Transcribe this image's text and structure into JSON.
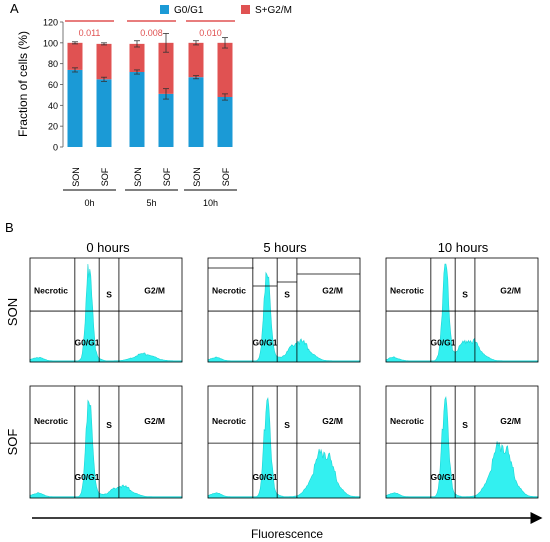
{
  "chart_data": [
    {
      "type": "bar",
      "panel_label": "A",
      "stacked": true,
      "ylabel": "Fraction of cells (%)",
      "ylim": [
        0,
        120
      ],
      "yticks": [
        0,
        20,
        40,
        60,
        80,
        100,
        120
      ],
      "grid": false,
      "legend_position": "top",
      "categories": [
        "SON",
        "SOF",
        "SON",
        "SOF",
        "SON",
        "SOF"
      ],
      "groups": [
        {
          "label": "0h",
          "categories": [
            0,
            1
          ]
        },
        {
          "label": "5h",
          "categories": [
            2,
            3
          ]
        },
        {
          "label": "10h",
          "categories": [
            4,
            5
          ]
        }
      ],
      "series": [
        {
          "name": "G0/G1",
          "color": "#1b9ad6",
          "values": [
            74,
            65,
            72,
            51,
            67,
            48
          ],
          "errors": [
            2,
            2,
            2,
            5,
            1.5,
            3
          ]
        },
        {
          "name": "S+G2/M",
          "color": "#e05252",
          "values": [
            26,
            34,
            27,
            49,
            33,
            52
          ],
          "errors": [
            1,
            1,
            3,
            9,
            2,
            5
          ]
        }
      ],
      "annotations": [
        {
          "text": "0.011",
          "group": 0,
          "color": "#e05252"
        },
        {
          "text": "0.008",
          "group": 1,
          "color": "#e05252"
        },
        {
          "text": "0.010",
          "group": 2,
          "color": "#e05252"
        }
      ]
    },
    {
      "type": "area",
      "panel_label": "B",
      "xlabel": "Fluorescence",
      "columns": [
        "0 hours",
        "5 hours",
        "10 hours"
      ],
      "rows": [
        "SON",
        "SOF"
      ],
      "fill_color": "#33f0f0",
      "gate_labels": {
        "necrotic": "Necrotic",
        "g0g1": "G0/G1",
        "s": "S",
        "g2m": "G2/M"
      },
      "histograms": [
        {
          "row": "SON",
          "column": "0 hours",
          "peak": [
            0.39,
            0.97
          ],
          "secondary": [
            0.75,
            0.07
          ]
        },
        {
          "row": "SON",
          "column": "5 hours",
          "peak": [
            0.39,
            0.97
          ],
          "secondary": [
            0.6,
            0.2
          ]
        },
        {
          "row": "SON",
          "column": "10 hours",
          "peak": [
            0.39,
            0.95
          ],
          "secondary": [
            0.55,
            0.22
          ]
        },
        {
          "row": "SOF",
          "column": "0 hours",
          "peak": [
            0.39,
            0.98
          ],
          "secondary": [
            0.6,
            0.1
          ]
        },
        {
          "row": "SOF",
          "column": "5 hours",
          "peak": [
            0.39,
            0.97
          ],
          "secondary": [
            0.76,
            0.43
          ]
        },
        {
          "row": "SOF",
          "column": "10 hours",
          "peak": [
            0.39,
            0.98
          ],
          "secondary": [
            0.76,
            0.5
          ]
        }
      ]
    }
  ]
}
